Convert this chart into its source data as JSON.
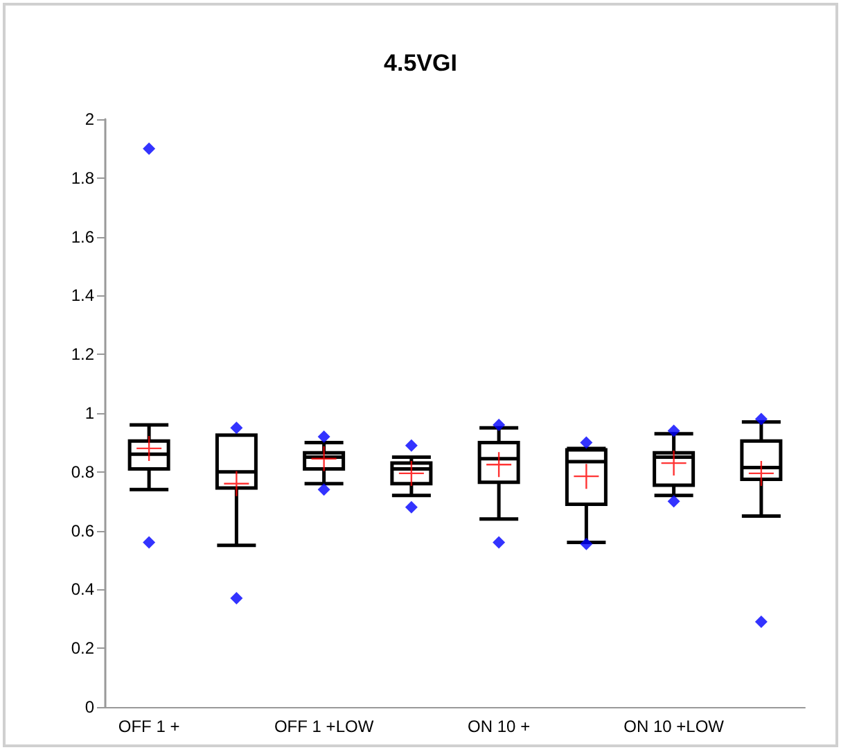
{
  "chart_data": {
    "type": "box",
    "title": "4.5VGI",
    "categories": [
      "OFF 1 +",
      null,
      "OFF 1 +LOW",
      null,
      "ON 10 +",
      null,
      "ON 10 +LOW",
      null
    ],
    "boxes": [
      {
        "low": 0.74,
        "q1": 0.81,
        "median": 0.86,
        "q3": 0.905,
        "high": 0.96,
        "mean": 0.88,
        "outliers": [
          1.9,
          0.56
        ]
      },
      {
        "low": 0.55,
        "q1": 0.745,
        "median": 0.8,
        "q3": 0.925,
        "high": 0.925,
        "mean": 0.76,
        "outliers": [
          0.95,
          0.37
        ]
      },
      {
        "low": 0.76,
        "q1": 0.81,
        "median": 0.85,
        "q3": 0.865,
        "high": 0.9,
        "mean": 0.845,
        "outliers": [
          0.92,
          0.74
        ]
      },
      {
        "low": 0.72,
        "q1": 0.76,
        "median": 0.81,
        "q3": 0.83,
        "high": 0.85,
        "mean": 0.795,
        "outliers": [
          0.89,
          0.68
        ]
      },
      {
        "low": 0.64,
        "q1": 0.765,
        "median": 0.845,
        "q3": 0.9,
        "high": 0.95,
        "mean": 0.825,
        "outliers": [
          0.96,
          0.56
        ]
      },
      {
        "low": 0.56,
        "q1": 0.69,
        "median": 0.835,
        "q3": 0.875,
        "high": 0.88,
        "mean": 0.785,
        "outliers": [
          0.9,
          0.555
        ]
      },
      {
        "low": 0.72,
        "q1": 0.755,
        "median": 0.85,
        "q3": 0.865,
        "high": 0.93,
        "mean": 0.83,
        "outliers": [
          0.94,
          0.7
        ]
      },
      {
        "low": 0.65,
        "q1": 0.775,
        "median": 0.815,
        "q3": 0.905,
        "high": 0.97,
        "mean": 0.795,
        "outliers": [
          0.98,
          0.29
        ]
      }
    ],
    "ylim": [
      0,
      2
    ],
    "yticks": [
      0,
      0.2,
      0.4,
      0.6,
      0.8,
      1,
      1.2,
      1.4,
      1.6,
      1.8,
      2
    ],
    "grid": false
  }
}
